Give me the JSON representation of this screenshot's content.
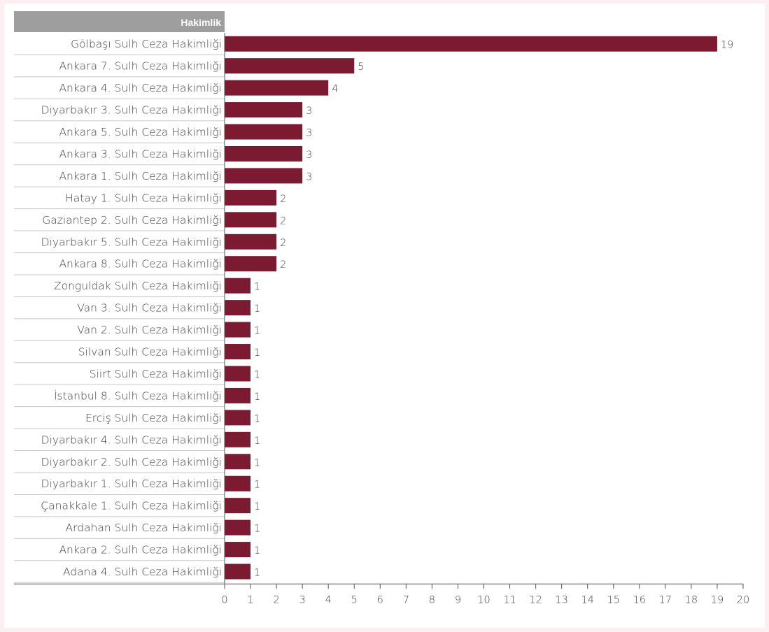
{
  "chart_data": {
    "type": "bar",
    "orientation": "horizontal",
    "header_label": "Hakimlik",
    "categories": [
      "Gölbaşı Sulh Ceza Hakimliği",
      "Ankara 7. Sulh Ceza Hakimliği",
      "Ankara 4. Sulh Ceza Hakimliği",
      "Diyarbakır 3. Sulh Ceza Hakimliği",
      "Ankara 5. Sulh Ceza Hakimliği",
      "Ankara 3. Sulh Ceza Hakimliği",
      "Ankara 1. Sulh Ceza Hakimliği",
      "Hatay 1. Sulh Ceza Hakimliği",
      "Gaziantep 2. Sulh Ceza Hakimliği",
      "Diyarbakır 5. Sulh Ceza Hakimliği",
      "Ankara 8. Sulh Ceza Hakimliği",
      "Zonguldak Sulh Ceza Hakimliği",
      "Van 3. Sulh Ceza Hakimliği",
      "Van 2. Sulh Ceza Hakimliği",
      "Silvan Sulh Ceza Hakimliği",
      "Siirt Sulh Ceza Hakimliği",
      "İstanbul 8. Sulh Ceza Hakimliği",
      "Erciş Sulh Ceza Hakimliği",
      "Diyarbakır 4. Sulh Ceza Hakimliği",
      "Diyarbakır 2. Sulh Ceza Hakimliği",
      "Diyarbakır 1. Sulh Ceza Hakimliği",
      "Çanakkale 1. Sulh Ceza Hakimliği",
      "Ardahan Sulh Ceza Hakimliği",
      "Ankara 2. Sulh Ceza Hakimliği",
      "Adana 4. Sulh Ceza Hakimliği"
    ],
    "values": [
      19,
      5,
      4,
      3,
      3,
      3,
      3,
      2,
      2,
      2,
      2,
      1,
      1,
      1,
      1,
      1,
      1,
      1,
      1,
      1,
      1,
      1,
      1,
      1,
      1
    ],
    "xlim": [
      0,
      20
    ],
    "xticks": [
      0,
      1,
      2,
      3,
      4,
      5,
      6,
      7,
      8,
      9,
      10,
      11,
      12,
      13,
      14,
      15,
      16,
      17,
      18,
      19,
      20
    ],
    "title": "",
    "xlabel": "",
    "ylabel": "",
    "grid": false,
    "legend": "none",
    "colors": {
      "bar": "#7b1a30",
      "header_bg": "#9e9e9e",
      "text": "#3d3d3d",
      "axis": "#555555",
      "row_divider": "#c8c8c8",
      "background": "#fbeff2"
    }
  }
}
